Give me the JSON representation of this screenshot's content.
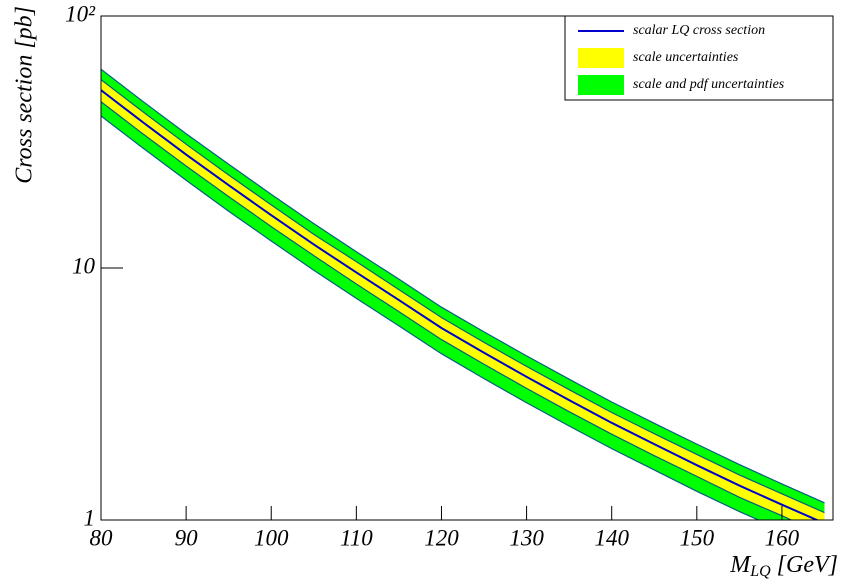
{
  "chart_data": {
    "type": "band-line",
    "x": [
      80,
      85,
      90,
      95,
      100,
      105,
      110,
      115,
      120,
      125,
      130,
      135,
      140,
      145,
      150,
      155,
      160,
      165
    ],
    "series": [
      {
        "name": "scalar LQ cross section",
        "color": "#0000cc",
        "values": [
          50.8,
          37.7,
          28.2,
          21.3,
          16.2,
          12.4,
          9.6,
          7.46,
          5.78,
          4.61,
          3.7,
          2.99,
          2.43,
          2.0,
          1.65,
          1.37,
          1.15,
          0.97
        ]
      },
      {
        "name": "scale uncertainties",
        "color": "#ffff00",
        "upper": [
          55.9,
          41.5,
          31.0,
          23.4,
          17.8,
          13.6,
          10.6,
          8.21,
          6.36,
          5.07,
          4.07,
          3.29,
          2.67,
          2.2,
          1.82,
          1.51,
          1.27,
          1.07
        ],
        "lower": [
          45.7,
          33.9,
          25.4,
          19.2,
          14.6,
          11.2,
          8.64,
          6.71,
          5.2,
          4.15,
          3.33,
          2.69,
          2.19,
          1.8,
          1.49,
          1.23,
          1.04,
          0.87
        ]
      },
      {
        "name": "scale and pdf uncertainties",
        "color": "#00ff00",
        "upper": [
          61.5,
          45.6,
          34.1,
          25.8,
          19.6,
          15.0,
          11.6,
          9.03,
          6.99,
          5.58,
          4.48,
          3.62,
          2.94,
          2.42,
          2.0,
          1.66,
          1.39,
          1.17
        ],
        "lower": [
          40.1,
          29.8,
          22.3,
          16.8,
          12.8,
          9.8,
          7.58,
          5.89,
          4.57,
          3.64,
          2.92,
          2.36,
          1.92,
          1.58,
          1.3,
          1.08,
          0.91,
          0.77
        ]
      }
    ],
    "band_edge_color": "#006080",
    "xlim": [
      80,
      166
    ],
    "xticks": [
      80,
      90,
      100,
      110,
      120,
      130,
      140,
      150,
      160
    ],
    "ylim": [
      1,
      100
    ],
    "yticks": [
      1,
      10,
      {
        "value": 100,
        "label": "10²"
      }
    ],
    "log_y": true,
    "ylabel": "Cross section [pb]",
    "xlabel": "M",
    "xlabel_sub": "LQ",
    "xlabel_unit": "[GeV]",
    "legend": "top-right"
  }
}
